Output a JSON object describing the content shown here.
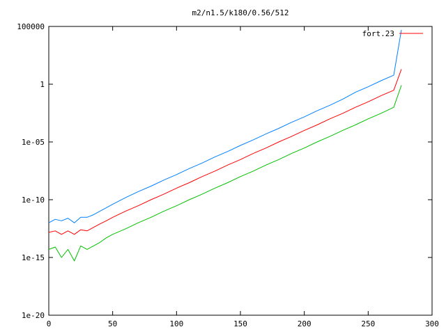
{
  "chart_data": {
    "type": "line",
    "title": "m2/n1.5/k180/0.56/512",
    "xlabel": "",
    "ylabel": "",
    "xlim": [
      0,
      300
    ],
    "ylim": [
      1e-20,
      100000
    ],
    "y_scale": "log",
    "grid": false,
    "legend_position": "top-right",
    "x_ticks": [
      0,
      50,
      100,
      150,
      200,
      250,
      300
    ],
    "x_tick_labels": [
      "0",
      "50",
      "100",
      "150",
      "200",
      "250",
      "300"
    ],
    "y_ticks": [
      1e-20,
      1e-15,
      1e-10,
      1e-05,
      1,
      100000
    ],
    "y_tick_labels": [
      "1e-20",
      "1e-15",
      "1e-10",
      "1e-05",
      "1",
      "100000"
    ],
    "legend": [
      {
        "label": "fort.23",
        "color": "#ff0000"
      }
    ],
    "series": [
      {
        "color": "#0080ff",
        "x": [
          0,
          5,
          10,
          15,
          20,
          25,
          30,
          35,
          40,
          45,
          50,
          60,
          70,
          80,
          90,
          100,
          110,
          120,
          130,
          140,
          150,
          160,
          170,
          180,
          190,
          200,
          210,
          220,
          230,
          240,
          250,
          260,
          270,
          276
        ],
        "y": [
          1e-12,
          2e-12,
          1.5e-12,
          2.5e-12,
          1e-12,
          3e-12,
          3e-12,
          5e-12,
          1e-11,
          2e-11,
          4e-11,
          1.5e-10,
          5e-10,
          1.5e-09,
          5e-09,
          1.5e-08,
          5e-08,
          1.5e-07,
          5e-07,
          1.5e-06,
          5e-06,
          1.5e-05,
          5e-05,
          0.00015,
          0.0005,
          0.0015,
          0.005,
          0.015,
          0.05,
          0.2,
          0.6,
          2,
          6,
          50000
        ]
      },
      {
        "color": "#ff0000",
        "x": [
          0,
          5,
          10,
          15,
          20,
          25,
          30,
          35,
          40,
          45,
          50,
          60,
          70,
          80,
          90,
          100,
          110,
          120,
          130,
          140,
          150,
          160,
          170,
          180,
          190,
          200,
          210,
          220,
          230,
          240,
          250,
          260,
          270,
          276
        ],
        "y": [
          1.5e-13,
          2e-13,
          1e-13,
          2e-13,
          1e-13,
          2.5e-13,
          2e-13,
          4e-13,
          8e-13,
          1.5e-12,
          3e-12,
          1e-11,
          3e-11,
          1e-10,
          3e-10,
          1e-09,
          3e-09,
          1e-08,
          3e-08,
          1e-07,
          3e-07,
          1e-06,
          3e-06,
          1e-05,
          3e-05,
          0.0001,
          0.0003,
          0.001,
          0.003,
          0.01,
          0.03,
          0.1,
          0.3,
          20
        ]
      },
      {
        "color": "#00c000",
        "x": [
          0,
          5,
          10,
          15,
          20,
          25,
          30,
          35,
          40,
          45,
          50,
          60,
          70,
          80,
          90,
          100,
          110,
          120,
          130,
          140,
          150,
          160,
          170,
          180,
          190,
          200,
          210,
          220,
          230,
          240,
          250,
          260,
          270,
          276
        ],
        "y": [
          5e-15,
          8e-15,
          1e-15,
          5e-15,
          5e-16,
          1e-14,
          5e-15,
          1e-14,
          2e-14,
          5e-14,
          1e-13,
          3e-13,
          1e-12,
          3e-12,
          1e-11,
          3e-11,
          1e-10,
          3e-10,
          1e-09,
          3e-09,
          1e-08,
          3e-08,
          1e-07,
          3e-07,
          1e-06,
          3e-06,
          1e-05,
          3e-05,
          0.0001,
          0.0003,
          0.001,
          0.003,
          0.01,
          0.8
        ]
      }
    ]
  }
}
